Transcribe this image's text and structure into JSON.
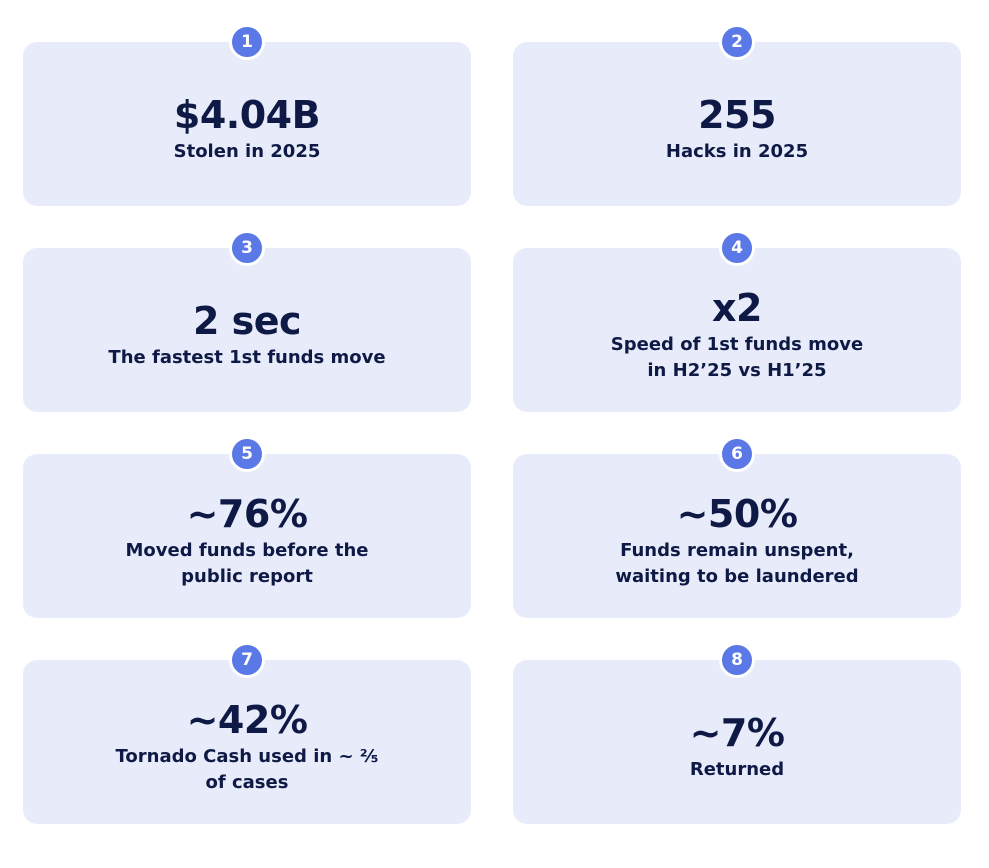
{
  "colors": {
    "card_background": "#e8ecfa",
    "badge_background": "#5a78e6",
    "text": "#0e1a45"
  },
  "cards": [
    {
      "number": "1",
      "value": "$4.04B",
      "label_lines": [
        "Stolen in 2025"
      ]
    },
    {
      "number": "2",
      "value": "255",
      "label_lines": [
        "Hacks in 2025"
      ]
    },
    {
      "number": "3",
      "value": "2 sec",
      "label_lines": [
        "The fastest 1st funds move"
      ]
    },
    {
      "number": "4",
      "value": "x2",
      "label_lines": [
        "Speed of 1st funds move",
        "in H2’25 vs H1’25"
      ]
    },
    {
      "number": "5",
      "value": "~76%",
      "label_lines": [
        "Moved funds before the",
        "public report"
      ]
    },
    {
      "number": "6",
      "value": "~50%",
      "label_lines": [
        "Funds remain unspent,",
        "waiting to be laundered"
      ]
    },
    {
      "number": "7",
      "value": "~42%",
      "label_lines": [
        "Tornado Cash used in ~ ⅖",
        "of cases"
      ]
    },
    {
      "number": "8",
      "value": "~7%",
      "label_lines": [
        "Returned"
      ]
    }
  ]
}
